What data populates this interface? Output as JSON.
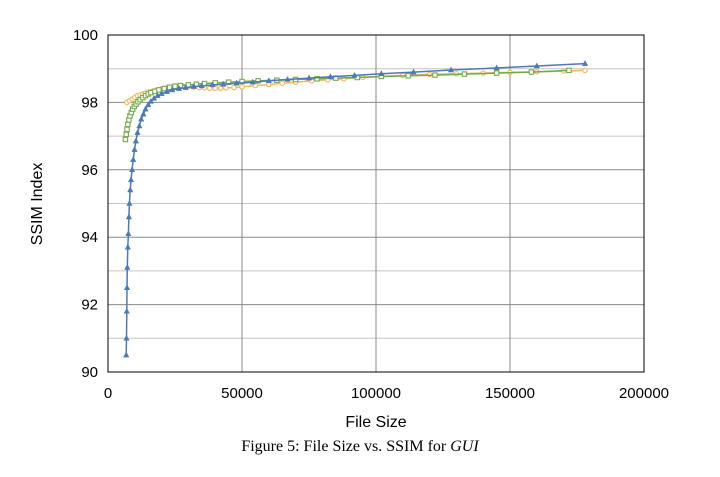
{
  "caption": {
    "prefix": "Figure 5: File Size vs. SSIM for ",
    "emphasis": "GUI"
  },
  "chart_data": {
    "type": "scatter",
    "title": "",
    "xlabel": "File Size",
    "ylabel": "SSIM Index",
    "xlim": [
      0,
      200000
    ],
    "ylim": [
      90,
      100
    ],
    "xticks": [
      0,
      50000,
      100000,
      150000,
      200000
    ],
    "yticks": [
      90,
      92,
      94,
      96,
      98,
      100
    ],
    "grid": true,
    "legend": "none",
    "series": [
      {
        "color": "#f5b55a",
        "marker": "circle",
        "points": [
          [
            7000,
            98.0
          ],
          [
            8000,
            98.05
          ],
          [
            9000,
            98.1
          ],
          [
            10000,
            98.15
          ],
          [
            11000,
            98.2
          ],
          [
            12000,
            98.22
          ],
          [
            13000,
            98.25
          ],
          [
            14000,
            98.28
          ],
          [
            15000,
            98.3
          ],
          [
            16000,
            98.32
          ],
          [
            17000,
            98.34
          ],
          [
            18000,
            98.36
          ],
          [
            19000,
            98.38
          ],
          [
            20000,
            98.4
          ],
          [
            21000,
            98.42
          ],
          [
            22000,
            98.43
          ],
          [
            23000,
            98.44
          ],
          [
            24000,
            98.45
          ],
          [
            25000,
            98.46
          ],
          [
            26000,
            98.47
          ],
          [
            27000,
            98.48
          ],
          [
            28000,
            98.48
          ],
          [
            30000,
            98.47
          ],
          [
            32000,
            98.45
          ],
          [
            34000,
            98.44
          ],
          [
            36000,
            98.43
          ],
          [
            38000,
            98.42
          ],
          [
            40000,
            98.42
          ],
          [
            42000,
            98.42
          ],
          [
            44000,
            98.43
          ],
          [
            47000,
            98.44
          ],
          [
            50000,
            98.46
          ],
          [
            55000,
            98.5
          ],
          [
            60000,
            98.53
          ],
          [
            65000,
            98.57
          ],
          [
            70000,
            98.6
          ],
          [
            76000,
            98.64
          ],
          [
            82000,
            98.67
          ],
          [
            88000,
            98.7
          ],
          [
            95000,
            98.74
          ],
          [
            102000,
            98.77
          ],
          [
            110000,
            98.8
          ],
          [
            120000,
            98.83
          ],
          [
            130000,
            98.85
          ],
          [
            140000,
            98.87
          ],
          [
            150000,
            98.89
          ],
          [
            160000,
            98.91
          ],
          [
            170000,
            98.93
          ],
          [
            178000,
            98.95
          ]
        ]
      },
      {
        "color": "#72ab4e",
        "marker": "square",
        "points": [
          [
            6500,
            96.9
          ],
          [
            6800,
            97.05
          ],
          [
            7100,
            97.2
          ],
          [
            7400,
            97.35
          ],
          [
            7800,
            97.48
          ],
          [
            8200,
            97.6
          ],
          [
            8700,
            97.7
          ],
          [
            9200,
            97.8
          ],
          [
            9800,
            97.88
          ],
          [
            10500,
            97.95
          ],
          [
            11200,
            98.02
          ],
          [
            12000,
            98.08
          ],
          [
            13000,
            98.14
          ],
          [
            14000,
            98.2
          ],
          [
            15000,
            98.25
          ],
          [
            16000,
            98.29
          ],
          [
            17500,
            98.33
          ],
          [
            19000,
            98.37
          ],
          [
            21000,
            98.41
          ],
          [
            23000,
            98.45
          ],
          [
            25000,
            98.48
          ],
          [
            27000,
            98.5
          ],
          [
            30000,
            98.52
          ],
          [
            33000,
            98.54
          ],
          [
            36000,
            98.56
          ],
          [
            40000,
            98.58
          ],
          [
            45000,
            98.6
          ],
          [
            50000,
            98.62
          ],
          [
            56000,
            98.64
          ],
          [
            63000,
            98.66
          ],
          [
            70000,
            98.68
          ],
          [
            78000,
            98.7
          ],
          [
            85000,
            98.72
          ],
          [
            93000,
            98.74
          ],
          [
            102000,
            98.77
          ],
          [
            112000,
            98.79
          ],
          [
            122000,
            98.81
          ],
          [
            133000,
            98.84
          ],
          [
            145000,
            98.87
          ],
          [
            158000,
            98.9
          ],
          [
            172000,
            98.95
          ]
        ]
      },
      {
        "color": "#4b7ab6",
        "marker": "triangle",
        "points": [
          [
            6800,
            90.5
          ],
          [
            6900,
            91.0
          ],
          [
            7000,
            91.8
          ],
          [
            7100,
            92.5
          ],
          [
            7200,
            93.1
          ],
          [
            7400,
            93.7
          ],
          [
            7600,
            94.1
          ],
          [
            7800,
            94.6
          ],
          [
            8000,
            95.0
          ],
          [
            8300,
            95.4
          ],
          [
            8600,
            95.7
          ],
          [
            9000,
            96.0
          ],
          [
            9400,
            96.3
          ],
          [
            9900,
            96.6
          ],
          [
            10400,
            96.85
          ],
          [
            11000,
            97.1
          ],
          [
            11700,
            97.3
          ],
          [
            12400,
            97.5
          ],
          [
            13200,
            97.65
          ],
          [
            14000,
            97.8
          ],
          [
            15000,
            97.93
          ],
          [
            16000,
            98.03
          ],
          [
            17200,
            98.12
          ],
          [
            18500,
            98.2
          ],
          [
            20000,
            98.26
          ],
          [
            22000,
            98.32
          ],
          [
            24000,
            98.37
          ],
          [
            26500,
            98.41
          ],
          [
            29000,
            98.44
          ],
          [
            32000,
            98.47
          ],
          [
            35000,
            98.49
          ],
          [
            39000,
            98.52
          ],
          [
            43000,
            98.54
          ],
          [
            48000,
            98.57
          ],
          [
            54000,
            98.6
          ],
          [
            60000,
            98.64
          ],
          [
            67000,
            98.68
          ],
          [
            75000,
            98.72
          ],
          [
            83000,
            98.76
          ],
          [
            92000,
            98.8
          ],
          [
            102000,
            98.85
          ],
          [
            114000,
            98.9
          ],
          [
            128000,
            98.96
          ],
          [
            145000,
            99.02
          ],
          [
            160000,
            99.08
          ],
          [
            178000,
            99.15
          ]
        ]
      }
    ]
  }
}
